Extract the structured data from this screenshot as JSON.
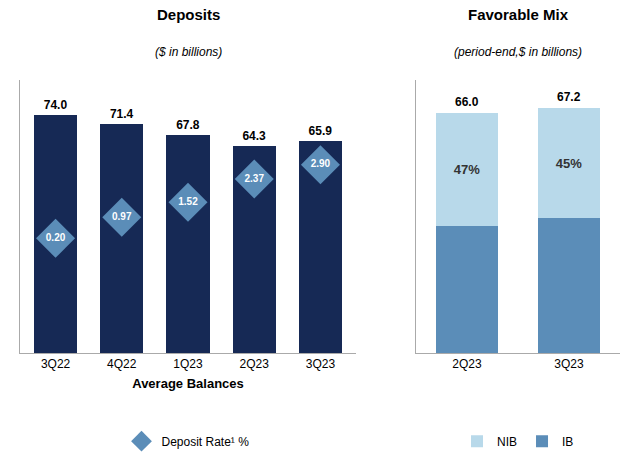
{
  "chart_data": [
    {
      "type": "bar",
      "title": "Deposits",
      "subtitle": "($ in billions)",
      "xlabel": "Average Balances",
      "categories": [
        "3Q22",
        "4Q22",
        "1Q23",
        "2Q23",
        "3Q23"
      ],
      "ylim": [
        0,
        85
      ],
      "y2lim": [
        -4,
        6
      ],
      "tick_labels": "x",
      "grid": false,
      "data_labels": true,
      "legend": "bottom",
      "series": [
        {
          "type": "bar",
          "color": "#162955",
          "values": [
            74.0,
            71.4,
            67.8,
            64.3,
            65.9
          ],
          "value_labels": [
            "74.0",
            "71.4",
            "67.8",
            "64.3",
            "65.9"
          ]
        },
        {
          "name": "Deposit Rate¹ %",
          "type": "scatter",
          "marker": "diamond",
          "color": "#5b8db8",
          "axis": "y2",
          "values": [
            0.2,
            0.97,
            1.52,
            2.37,
            2.9
          ],
          "value_labels": [
            "0.20",
            "0.97",
            "1.52",
            "2.37",
            "2.90"
          ]
        }
      ]
    },
    {
      "type": "bar",
      "stacked": true,
      "title": "Favorable Mix",
      "subtitle": "(period-end,$ in billions)",
      "categories": [
        "2Q23",
        "3Q23"
      ],
      "ylim": [
        0,
        75
      ],
      "tick_labels": "x",
      "grid": false,
      "data_labels": true,
      "legend": "bottom",
      "totals": [
        66.0,
        67.2
      ],
      "total_labels": [
        "66.0",
        "67.2"
      ],
      "series": [
        {
          "name": "IB",
          "type": "bar",
          "color": "#5b8db8",
          "values": [
            34.98,
            36.96
          ]
        },
        {
          "name": "NIB",
          "type": "bar",
          "color": "#b8d9ea",
          "values": [
            31.02,
            30.24
          ],
          "share_labels": [
            "47%",
            "45%"
          ]
        }
      ]
    }
  ]
}
